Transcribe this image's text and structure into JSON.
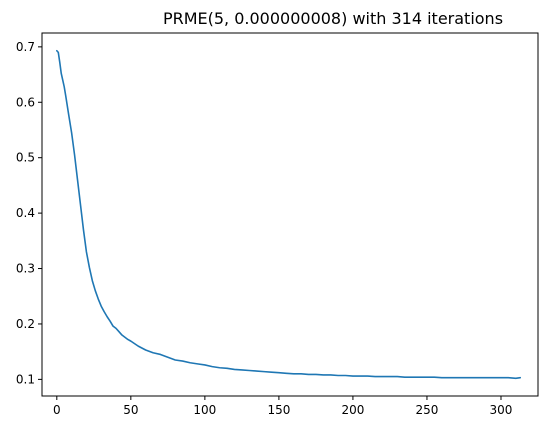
{
  "chart_data": {
    "type": "line",
    "title": "PRME(5, 0.000000008) with 314 iterations",
    "xlabel": "",
    "ylabel": "",
    "xlim": [
      -10,
      325
    ],
    "ylim": [
      0.07,
      0.725
    ],
    "grid": false,
    "legend": "none",
    "x_ticks": [
      0,
      50,
      100,
      150,
      200,
      250,
      300
    ],
    "y_ticks": [
      0.1,
      0.2,
      0.3,
      0.4,
      0.5,
      0.6,
      0.7
    ],
    "x_tick_labels": [
      "0",
      "50",
      "100",
      "150",
      "200",
      "250",
      "300"
    ],
    "y_tick_labels": [
      "0.1",
      "0.2",
      "0.3",
      "0.4",
      "0.5",
      "0.6",
      "0.7"
    ],
    "series": [
      {
        "color": "#1f77b4",
        "x": [
          0,
          1,
          2,
          3,
          4,
          5,
          6,
          8,
          10,
          12,
          14,
          16,
          18,
          20,
          22,
          24,
          26,
          28,
          30,
          32,
          34,
          36,
          38,
          40,
          42,
          44,
          46,
          48,
          50,
          55,
          60,
          65,
          70,
          75,
          80,
          85,
          90,
          95,
          100,
          105,
          110,
          115,
          120,
          125,
          130,
          135,
          140,
          145,
          150,
          155,
          160,
          165,
          170,
          175,
          180,
          185,
          190,
          195,
          200,
          205,
          210,
          215,
          220,
          225,
          230,
          235,
          240,
          245,
          250,
          255,
          260,
          265,
          270,
          275,
          280,
          285,
          290,
          295,
          300,
          305,
          310,
          313
        ],
        "y": [
          0.693,
          0.69,
          0.672,
          0.652,
          0.64,
          0.628,
          0.612,
          0.578,
          0.545,
          0.505,
          0.46,
          0.415,
          0.37,
          0.33,
          0.302,
          0.278,
          0.26,
          0.245,
          0.232,
          0.222,
          0.213,
          0.205,
          0.196,
          0.192,
          0.186,
          0.18,
          0.176,
          0.172,
          0.169,
          0.16,
          0.153,
          0.148,
          0.145,
          0.14,
          0.135,
          0.133,
          0.13,
          0.128,
          0.126,
          0.123,
          0.121,
          0.12,
          0.118,
          0.117,
          0.116,
          0.115,
          0.114,
          0.113,
          0.112,
          0.111,
          0.11,
          0.11,
          0.109,
          0.109,
          0.108,
          0.108,
          0.107,
          0.107,
          0.106,
          0.106,
          0.106,
          0.105,
          0.105,
          0.105,
          0.105,
          0.104,
          0.104,
          0.104,
          0.104,
          0.104,
          0.103,
          0.103,
          0.103,
          0.103,
          0.103,
          0.103,
          0.103,
          0.103,
          0.103,
          0.103,
          0.102,
          0.103
        ]
      }
    ]
  }
}
